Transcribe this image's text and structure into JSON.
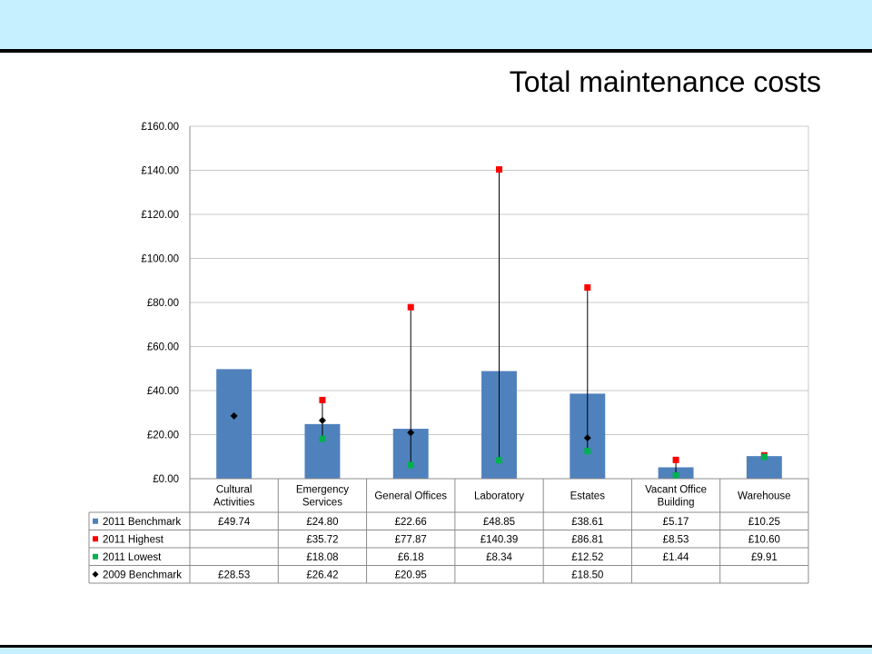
{
  "page": {
    "title": "Total maintenance costs"
  },
  "colors": {
    "band": "#c6efff",
    "benchmark_2011": "#4f81bd",
    "highest_2011": "#ff0000",
    "lowest_2011": "#00b050",
    "benchmark_2009": "#000000"
  },
  "chart_data": {
    "type": "bar",
    "categories": [
      [
        "Cultural",
        "Activities"
      ],
      [
        "Emergency",
        "Services"
      ],
      [
        "General Offices"
      ],
      [
        "Laboratory"
      ],
      [
        "Estates"
      ],
      [
        "Vacant Office",
        "Building"
      ],
      [
        "Warehouse"
      ]
    ],
    "ylim": [
      0,
      160
    ],
    "yticks": [
      0,
      20,
      40,
      60,
      80,
      100,
      120,
      140,
      160
    ],
    "ytick_labels": [
      "£0.00",
      "£20.00",
      "£40.00",
      "£60.00",
      "£80.00",
      "£100.00",
      "£120.00",
      "£140.00",
      "£160.00"
    ],
    "grid": true,
    "legend": "data-table",
    "series": [
      {
        "name": "2011 Benchmark",
        "kind": "bar",
        "marker": "square",
        "color": "#4f81bd",
        "values": [
          49.74,
          24.8,
          22.66,
          48.85,
          38.61,
          5.17,
          10.25
        ],
        "labels": [
          "£49.74",
          "£24.80",
          "£22.66",
          "£48.85",
          "£38.61",
          "£5.17",
          "£10.25"
        ]
      },
      {
        "name": "2011 Highest",
        "kind": "point",
        "marker": "square",
        "color": "#ff0000",
        "values": [
          null,
          35.72,
          77.87,
          140.39,
          86.81,
          8.53,
          10.6
        ],
        "labels": [
          "",
          "£35.72",
          "£77.87",
          "£140.39",
          "£86.81",
          "£8.53",
          "£10.60"
        ]
      },
      {
        "name": "2011 Lowest",
        "kind": "point",
        "marker": "square",
        "color": "#00b050",
        "values": [
          null,
          18.08,
          6.18,
          8.34,
          12.52,
          1.44,
          9.91
        ],
        "labels": [
          "",
          "£18.08",
          "£6.18",
          "£8.34",
          "£12.52",
          "£1.44",
          "£9.91"
        ]
      },
      {
        "name": "2009 Benchmark",
        "kind": "point",
        "marker": "diamond",
        "color": "#000000",
        "values": [
          28.53,
          26.42,
          20.95,
          null,
          18.5,
          null,
          null
        ],
        "labels": [
          "£28.53",
          "£26.42",
          "£20.95",
          "",
          "£18.50",
          "",
          ""
        ]
      }
    ]
  }
}
